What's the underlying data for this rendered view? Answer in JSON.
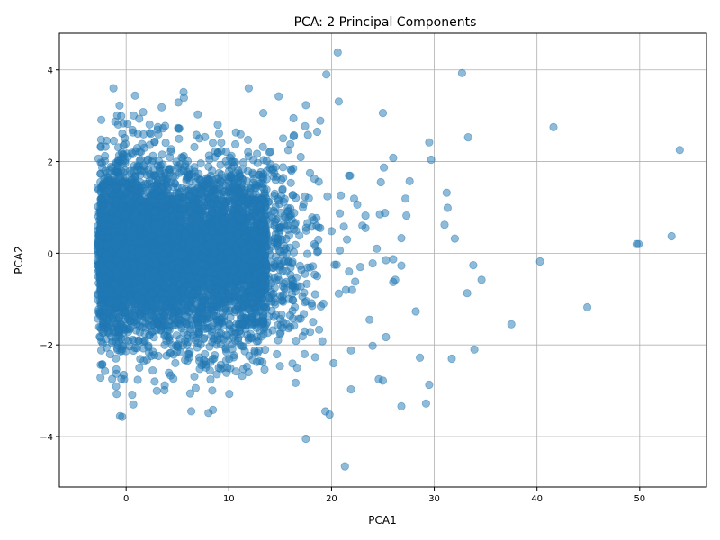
{
  "chart_data": {
    "type": "scatter",
    "title": "PCA: 2 Principal Components",
    "xlabel": "PCA1",
    "ylabel": "PCA2",
    "xlim": [
      -6.5,
      56.5
    ],
    "ylim": [
      -5.1,
      4.8
    ],
    "xticks": [
      0,
      10,
      20,
      30,
      40,
      50
    ],
    "yticks": [
      -4,
      -2,
      0,
      2,
      4
    ],
    "grid": true,
    "marker_color": "#1f77b4",
    "marker_alpha": 0.5,
    "dense_core_points_generated": 6000,
    "points": [
      [
        53.9,
        2.25
      ],
      [
        53.1,
        0.37
      ],
      [
        49.9,
        0.2
      ],
      [
        49.7,
        0.2
      ],
      [
        44.9,
        -1.18
      ],
      [
        41.6,
        2.75
      ],
      [
        40.3,
        -0.18
      ],
      [
        37.5,
        -1.55
      ],
      [
        34.6,
        -0.58
      ],
      [
        33.9,
        -2.1
      ],
      [
        33.8,
        -0.26
      ],
      [
        33.3,
        2.53
      ],
      [
        33.2,
        -0.87
      ],
      [
        32.7,
        3.93
      ],
      [
        32.0,
        0.32
      ],
      [
        31.7,
        -2.3
      ],
      [
        31.3,
        0.99
      ],
      [
        31.2,
        1.32
      ],
      [
        31.0,
        0.62
      ],
      [
        29.7,
        2.04
      ],
      [
        29.5,
        2.42
      ],
      [
        29.5,
        -2.87
      ],
      [
        29.2,
        -3.28
      ],
      [
        28.6,
        -2.28
      ],
      [
        28.2,
        -1.27
      ],
      [
        27.3,
        0.82
      ],
      [
        27.6,
        1.57
      ],
      [
        27.2,
        1.19
      ],
      [
        26.8,
        0.33
      ],
      [
        26.8,
        -0.27
      ],
      [
        26.8,
        -3.34
      ],
      [
        26.2,
        -0.58
      ],
      [
        26.0,
        -0.63
      ],
      [
        26.0,
        -0.13
      ],
      [
        26.0,
        2.08
      ],
      [
        25.3,
        -1.83
      ],
      [
        25.3,
        -0.15
      ],
      [
        25.2,
        0.88
      ],
      [
        25.1,
        1.87
      ],
      [
        25.0,
        3.06
      ],
      [
        25.0,
        -2.78
      ],
      [
        24.8,
        1.55
      ],
      [
        24.7,
        0.85
      ],
      [
        24.6,
        -2.75
      ],
      [
        24.4,
        0.1
      ],
      [
        24.0,
        -2.02
      ],
      [
        24.0,
        -0.22
      ],
      [
        23.7,
        -1.45
      ],
      [
        23.3,
        0.55
      ],
      [
        23.3,
        0.82
      ],
      [
        23.0,
        0.6
      ],
      [
        22.8,
        -0.3
      ],
      [
        22.5,
        1.06
      ],
      [
        22.2,
        1.19
      ],
      [
        22.3,
        -0.62
      ],
      [
        22.0,
        -0.8
      ],
      [
        21.9,
        -2.97
      ],
      [
        21.9,
        -2.12
      ],
      [
        21.8,
        1.69
      ],
      [
        21.7,
        1.69
      ],
      [
        21.7,
        -0.4
      ],
      [
        21.5,
        0.3
      ],
      [
        21.4,
        -0.8
      ],
      [
        21.2,
        0.58
      ],
      [
        21.3,
        -4.65
      ],
      [
        20.9,
        1.26
      ],
      [
        20.8,
        0.06
      ],
      [
        20.8,
        0.87
      ],
      [
        20.7,
        -0.88
      ],
      [
        20.7,
        3.31
      ],
      [
        20.6,
        4.38
      ],
      [
        20.5,
        -0.25
      ],
      [
        20.3,
        -0.25
      ],
      [
        20.2,
        -2.4
      ],
      [
        20.0,
        0.48
      ],
      [
        19.8,
        -3.52
      ],
      [
        19.4,
        -3.45
      ],
      [
        19.6,
        1.24
      ],
      [
        19.5,
        3.9
      ],
      [
        19.2,
        -1.1
      ],
      [
        19.1,
        -1.92
      ],
      [
        18.9,
        0.55
      ],
      [
        18.7,
        0.04
      ],
      [
        18.9,
        2.89
      ],
      [
        18.6,
        -0.5
      ],
      [
        18.6,
        2.65
      ],
      [
        18.4,
        -2.27
      ],
      [
        18.2,
        -1.5
      ],
      [
        18.1,
        -1.15
      ],
      [
        17.9,
        1.75
      ],
      [
        17.8,
        1.2
      ],
      [
        17.5,
        -4.05
      ],
      [
        17.7,
        2.58
      ],
      [
        17.5,
        3.23
      ],
      [
        17.4,
        -0.45
      ],
      [
        17.2,
        1.0
      ],
      [
        17.0,
        2.1
      ],
      [
        16.8,
        -1.43
      ],
      [
        16.5,
        -2.83
      ],
      [
        16.3,
        2.55
      ]
    ]
  }
}
